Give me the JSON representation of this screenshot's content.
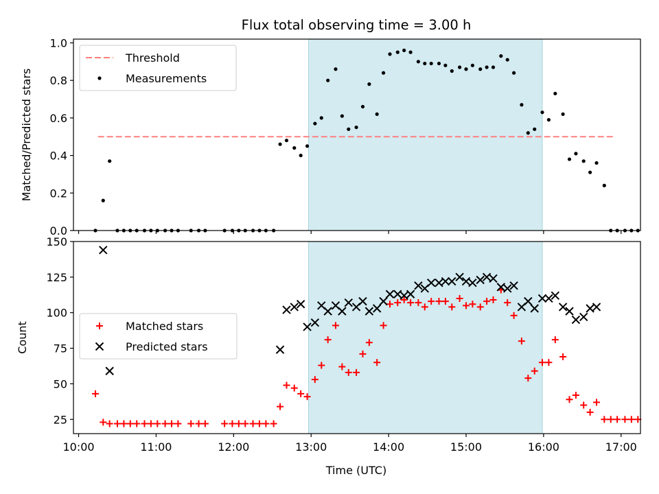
{
  "chart_data": [
    {
      "type": "scatter",
      "title": "Flux total observing time = 3.00 h",
      "xlabel": "",
      "ylabel": "Matched/Predicted stars",
      "xlim": [
        "09:56",
        "17:15"
      ],
      "ylim": [
        0,
        1.02
      ],
      "yticks": [
        0.0,
        0.2,
        0.4,
        0.6,
        0.8,
        1.0
      ],
      "ytick_labels": [
        "0.0",
        "0.2",
        "0.4",
        "0.6",
        "0.8",
        "1.0"
      ],
      "xticks": [
        "10:00",
        "11:00",
        "12:00",
        "13:00",
        "14:00",
        "15:00",
        "16:00",
        "17:00"
      ],
      "highlight_span": {
        "from": "12:58",
        "to": "15:59",
        "color": "#d3ebf1"
      },
      "legend": {
        "position": "upper-left",
        "entries": [
          "Threshold",
          "Measurements"
        ]
      },
      "grid": false,
      "series": [
        {
          "name": "Threshold",
          "style": "dashed-line",
          "color": "#ff7f7f",
          "points": [
            [
              "10:15",
              0.5
            ],
            [
              "16:55",
              0.5
            ]
          ]
        },
        {
          "name": "Measurements",
          "style": "dot",
          "color": "#000000",
          "points": [
            [
              "10:13",
              0.0
            ],
            [
              "10:19",
              0.16
            ],
            [
              "10:24",
              0.37
            ],
            [
              "10:30",
              0.0
            ],
            [
              "10:35",
              0.0
            ],
            [
              "10:40",
              0.0
            ],
            [
              "10:45",
              0.0
            ],
            [
              "10:51",
              0.0
            ],
            [
              "10:56",
              0.0
            ],
            [
              "11:01",
              0.0
            ],
            [
              "11:07",
              0.0
            ],
            [
              "11:12",
              0.0
            ],
            [
              "11:17",
              0.0
            ],
            [
              "11:27",
              0.0
            ],
            [
              "11:33",
              0.0
            ],
            [
              "11:38",
              0.0
            ],
            [
              "11:53",
              0.0
            ],
            [
              "11:59",
              0.0
            ],
            [
              "12:04",
              0.0
            ],
            [
              "12:09",
              0.0
            ],
            [
              "12:15",
              0.0
            ],
            [
              "12:20",
              0.0
            ],
            [
              "12:25",
              0.0
            ],
            [
              "12:31",
              0.0
            ],
            [
              "12:36",
              0.46
            ],
            [
              "12:41",
              0.48
            ],
            [
              "12:47",
              0.44
            ],
            [
              "12:52",
              0.4
            ],
            [
              "12:57",
              0.45
            ],
            [
              "13:03",
              0.57
            ],
            [
              "13:08",
              0.6
            ],
            [
              "13:13",
              0.8
            ],
            [
              "13:19",
              0.86
            ],
            [
              "13:24",
              0.61
            ],
            [
              "13:29",
              0.54
            ],
            [
              "13:35",
              0.55
            ],
            [
              "13:40",
              0.66
            ],
            [
              "13:45",
              0.78
            ],
            [
              "13:51",
              0.62
            ],
            [
              "13:56",
              0.84
            ],
            [
              "14:01",
              0.94
            ],
            [
              "14:07",
              0.95
            ],
            [
              "14:12",
              0.96
            ],
            [
              "14:17",
              0.95
            ],
            [
              "14:23",
              0.9
            ],
            [
              "14:28",
              0.89
            ],
            [
              "14:33",
              0.89
            ],
            [
              "14:39",
              0.89
            ],
            [
              "14:44",
              0.88
            ],
            [
              "14:49",
              0.85
            ],
            [
              "14:55",
              0.87
            ],
            [
              "15:00",
              0.86
            ],
            [
              "15:05",
              0.88
            ],
            [
              "15:11",
              0.86
            ],
            [
              "15:16",
              0.87
            ],
            [
              "15:21",
              0.87
            ],
            [
              "15:27",
              0.93
            ],
            [
              "15:32",
              0.91
            ],
            [
              "15:37",
              0.84
            ],
            [
              "15:43",
              0.67
            ],
            [
              "15:48",
              0.52
            ],
            [
              "15:53",
              0.54
            ],
            [
              "15:59",
              0.63
            ],
            [
              "16:04",
              0.59
            ],
            [
              "16:09",
              0.73
            ],
            [
              "16:15",
              0.62
            ],
            [
              "16:20",
              0.38
            ],
            [
              "16:25",
              0.41
            ],
            [
              "16:31",
              0.37
            ],
            [
              "16:36",
              0.31
            ],
            [
              "16:41",
              0.36
            ],
            [
              "16:47",
              0.24
            ],
            [
              "16:52",
              0.0
            ],
            [
              "16:57",
              0.0
            ],
            [
              "17:03",
              0.0
            ],
            [
              "17:08",
              0.0
            ],
            [
              "17:13",
              0.0
            ]
          ]
        }
      ]
    },
    {
      "type": "scatter",
      "title": "",
      "xlabel": "Time (UTC)",
      "ylabel": "Count",
      "xlim": [
        "09:56",
        "17:15"
      ],
      "ylim": [
        15,
        150
      ],
      "yticks": [
        25,
        50,
        75,
        100,
        125,
        150
      ],
      "ytick_labels": [
        "25",
        "50",
        "75",
        "100",
        "125",
        "150"
      ],
      "xticks": [
        "10:00",
        "11:00",
        "12:00",
        "13:00",
        "14:00",
        "15:00",
        "16:00",
        "17:00"
      ],
      "xtick_labels": [
        "10:00",
        "11:00",
        "12:00",
        "13:00",
        "14:00",
        "15:00",
        "16:00",
        "17:00"
      ],
      "highlight_span": {
        "from": "12:58",
        "to": "15:59",
        "color": "#d3ebf1"
      },
      "legend": {
        "position": "center-left",
        "entries": [
          "Matched stars",
          "Predicted stars"
        ]
      },
      "grid": false,
      "series": [
        {
          "name": "Matched stars",
          "style": "plus",
          "color": "#ff0000",
          "points": [
            [
              "10:13",
              43
            ],
            [
              "10:19",
              23
            ],
            [
              "10:24",
              22
            ],
            [
              "10:30",
              22
            ],
            [
              "10:35",
              22
            ],
            [
              "10:40",
              22
            ],
            [
              "10:45",
              22
            ],
            [
              "10:51",
              22
            ],
            [
              "10:56",
              22
            ],
            [
              "11:01",
              22
            ],
            [
              "11:07",
              22
            ],
            [
              "11:12",
              22
            ],
            [
              "11:17",
              22
            ],
            [
              "11:27",
              22
            ],
            [
              "11:33",
              22
            ],
            [
              "11:38",
              22
            ],
            [
              "11:53",
              22
            ],
            [
              "11:59",
              22
            ],
            [
              "12:04",
              22
            ],
            [
              "12:09",
              22
            ],
            [
              "12:15",
              22
            ],
            [
              "12:20",
              22
            ],
            [
              "12:25",
              22
            ],
            [
              "12:31",
              22
            ],
            [
              "12:36",
              34
            ],
            [
              "12:41",
              49
            ],
            [
              "12:47",
              47
            ],
            [
              "12:52",
              43
            ],
            [
              "12:57",
              41
            ],
            [
              "13:03",
              53
            ],
            [
              "13:08",
              63
            ],
            [
              "13:13",
              81
            ],
            [
              "13:19",
              91
            ],
            [
              "13:24",
              62
            ],
            [
              "13:29",
              58
            ],
            [
              "13:35",
              58
            ],
            [
              "13:40",
              71
            ],
            [
              "13:45",
              79
            ],
            [
              "13:51",
              65
            ],
            [
              "13:56",
              91
            ],
            [
              "14:01",
              106
            ],
            [
              "14:07",
              107
            ],
            [
              "14:12",
              109
            ],
            [
              "14:17",
              107
            ],
            [
              "14:23",
              107
            ],
            [
              "14:28",
              104
            ],
            [
              "14:33",
              108
            ],
            [
              "14:39",
              108
            ],
            [
              "14:44",
              108
            ],
            [
              "14:49",
              104
            ],
            [
              "14:55",
              110
            ],
            [
              "15:00",
              105
            ],
            [
              "15:05",
              106
            ],
            [
              "15:11",
              104
            ],
            [
              "15:16",
              108
            ],
            [
              "15:21",
              109
            ],
            [
              "15:27",
              116
            ],
            [
              "15:32",
              107
            ],
            [
              "15:37",
              98
            ],
            [
              "15:43",
              80
            ],
            [
              "15:48",
              54
            ],
            [
              "15:53",
              59
            ],
            [
              "15:59",
              65
            ],
            [
              "16:04",
              65
            ],
            [
              "16:09",
              81
            ],
            [
              "16:15",
              69
            ],
            [
              "16:20",
              39
            ],
            [
              "16:25",
              42
            ],
            [
              "16:31",
              35
            ],
            [
              "16:36",
              30
            ],
            [
              "16:41",
              37
            ],
            [
              "16:47",
              25
            ],
            [
              "16:52",
              25
            ],
            [
              "16:57",
              25
            ],
            [
              "17:03",
              25
            ],
            [
              "17:08",
              25
            ],
            [
              "17:13",
              25
            ]
          ]
        },
        {
          "name": "Predicted stars",
          "style": "x",
          "color": "#000000",
          "points": [
            [
              "10:19",
              144
            ],
            [
              "10:24",
              59
            ],
            [
              "12:36",
              74
            ],
            [
              "12:41",
              102
            ],
            [
              "12:47",
              104
            ],
            [
              "12:52",
              106
            ],
            [
              "12:57",
              90
            ],
            [
              "13:03",
              93
            ],
            [
              "13:08",
              105
            ],
            [
              "13:13",
              101
            ],
            [
              "13:19",
              105
            ],
            [
              "13:24",
              101
            ],
            [
              "13:29",
              107
            ],
            [
              "13:35",
              104
            ],
            [
              "13:40",
              108
            ],
            [
              "13:45",
              101
            ],
            [
              "13:51",
              103
            ],
            [
              "13:56",
              108
            ],
            [
              "14:01",
              113
            ],
            [
              "14:07",
              113
            ],
            [
              "14:12",
              112
            ],
            [
              "14:17",
              113
            ],
            [
              "14:23",
              119
            ],
            [
              "14:28",
              117
            ],
            [
              "14:33",
              121
            ],
            [
              "14:39",
              121
            ],
            [
              "14:44",
              122
            ],
            [
              "14:49",
              122
            ],
            [
              "14:55",
              125
            ],
            [
              "15:00",
              122
            ],
            [
              "15:05",
              121
            ],
            [
              "15:11",
              123
            ],
            [
              "15:16",
              125
            ],
            [
              "15:21",
              124
            ],
            [
              "15:27",
              118
            ],
            [
              "15:32",
              117
            ],
            [
              "15:37",
              119
            ],
            [
              "15:43",
              104
            ],
            [
              "15:48",
              108
            ],
            [
              "15:53",
              103
            ],
            [
              "15:59",
              110
            ],
            [
              "16:04",
              110
            ],
            [
              "16:09",
              112
            ],
            [
              "16:15",
              104
            ],
            [
              "16:20",
              101
            ],
            [
              "16:25",
              95
            ],
            [
              "16:31",
              97
            ],
            [
              "16:36",
              103
            ],
            [
              "16:41",
              104
            ]
          ]
        }
      ]
    }
  ]
}
